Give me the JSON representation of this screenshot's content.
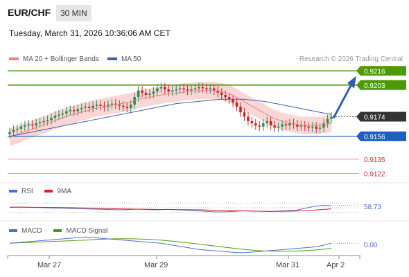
{
  "header": {
    "pair": "EUR/CHF",
    "timeframe": "30 MIN",
    "datetime": "Tuesday, March 31, 2026 10:36:06 AM CET"
  },
  "legend": {
    "ma20_label": "MA 20 + Bollinger Bands",
    "ma50_label": "MA 50",
    "credit": "Research © 2026 Trading Central"
  },
  "colors": {
    "up_candle": "#2e8b57",
    "down_candle": "#c62828",
    "ma20": "#f08080",
    "bollinger_fill": "#f9d0d0",
    "ma50": "#3c5fa8",
    "resistance": "#4e9a06",
    "support": "#1f5fbf",
    "target_line": "#e8a0a0",
    "arrow": "#2f5fad",
    "current_price_tag": "#333333",
    "rsi": "#4a6fd1",
    "rsi_ma": "#d62020",
    "macd": "#4a6fd1",
    "macd_signal": "#4e9a06"
  },
  "levels": {
    "r2": "0.9216",
    "r1": "0.9203",
    "current": "0.9174",
    "s1": "0.9156",
    "s2": "0.9135",
    "s3": "0.9122"
  },
  "rsi_panel": {
    "label": "RSI",
    "ma_label": "9MA",
    "value": "58.73",
    "upper_level": "70",
    "lower_level": "30"
  },
  "macd_panel": {
    "label": "MACD",
    "signal_label": "MACD Signal",
    "value": "0.00"
  },
  "x_axis": {
    "ticks": [
      "Mar 27",
      "Mar 29",
      "Mar 31",
      "Apr 2"
    ]
  },
  "chart_data": {
    "type": "candlestick",
    "pair": "EUR/CHF",
    "timeframe": "30 MIN",
    "ylim": [
      0.9116,
      0.922
    ],
    "series": [
      {
        "name": "Price",
        "close": [
          0.916,
          0.9162,
          0.9163,
          0.9165,
          0.9166,
          0.9167,
          0.9166,
          0.9168,
          0.9169,
          0.917,
          0.9171,
          0.9173,
          0.9175,
          0.9176,
          0.9177,
          0.9179,
          0.918,
          0.9179,
          0.9181,
          0.9182,
          0.9183,
          0.9182,
          0.9184,
          0.9185,
          0.9184,
          0.9183,
          0.9185,
          0.9186,
          0.9185,
          0.9184,
          0.9183,
          0.9182,
          0.9185,
          0.9192,
          0.9198,
          0.9196,
          0.9194,
          0.9195,
          0.9197,
          0.92,
          0.9201,
          0.9199,
          0.9197,
          0.9198,
          0.9199,
          0.92,
          0.9199,
          0.9198,
          0.9199,
          0.92,
          0.9201,
          0.92,
          0.9199,
          0.92,
          0.9198,
          0.9196,
          0.9194,
          0.9192,
          0.919,
          0.9187,
          0.9183,
          0.9178,
          0.9174,
          0.917,
          0.9168,
          0.9166,
          0.9165,
          0.9168,
          0.917,
          0.9166,
          0.9164,
          0.9165,
          0.9167,
          0.9166,
          0.9168,
          0.9167,
          0.9165,
          0.9166,
          0.9165,
          0.9164,
          0.9165,
          0.9163,
          0.9164,
          0.9168,
          0.9172,
          0.9174
        ]
      },
      {
        "name": "MA 20",
        "values": [
          0.9155,
          0.9157,
          0.9159,
          0.9161,
          0.9163,
          0.9165,
          0.9167,
          0.9169,
          0.9171,
          0.9173,
          0.9175,
          0.9176,
          0.9178,
          0.9179,
          0.9181,
          0.9182,
          0.9183,
          0.9184,
          0.9185,
          0.9186,
          0.9187,
          0.9188,
          0.919,
          0.9191,
          0.9192,
          0.9193,
          0.9194,
          0.9195,
          0.9195,
          0.9196,
          0.9197,
          0.9197,
          0.9198,
          0.9198,
          0.9198,
          0.9198,
          0.9197,
          0.9196,
          0.9194,
          0.9191,
          0.9188,
          0.9185,
          0.9182,
          0.9179,
          0.9176,
          0.9173,
          0.9171,
          0.9169,
          0.9168,
          0.9167,
          0.9166,
          0.9166,
          0.9166,
          0.9166,
          0.9167,
          0.9168
        ]
      },
      {
        "name": "MA 50",
        "values": [
          0.9156,
          0.9158,
          0.916,
          0.9162,
          0.9164,
          0.9166,
          0.9168,
          0.917,
          0.9172,
          0.9174,
          0.9176,
          0.9178,
          0.918,
          0.9182,
          0.9184,
          0.9186,
          0.9187,
          0.9188,
          0.9189,
          0.919,
          0.919,
          0.919,
          0.9189,
          0.9188,
          0.9186,
          0.9184,
          0.9182,
          0.918,
          0.9178,
          0.9176
        ]
      },
      {
        "name": "RSI",
        "values": [
          52,
          53,
          52,
          51,
          50,
          49,
          48,
          47,
          46,
          45,
          44,
          43,
          42,
          41,
          43,
          44,
          42,
          41,
          43,
          42,
          40,
          38,
          36,
          34,
          32,
          33,
          35,
          37,
          36,
          35,
          34,
          36,
          38,
          40,
          48,
          56,
          60,
          59
        ]
      },
      {
        "name": "MACD",
        "values": [
          0.0,
          0.0001,
          0.0002,
          0.0003,
          0.0004,
          0.0005,
          0.0006,
          0.0007,
          0.0008,
          0.0007,
          0.0006,
          0.0005,
          0.0004,
          0.0003,
          0.0002,
          0.0001,
          0.0,
          -0.0002,
          -0.0004,
          -0.0006,
          -0.0008,
          -0.0009,
          -0.001,
          -0.0011,
          -0.0012,
          -0.0012,
          -0.0011,
          -0.001,
          -0.0009,
          -0.0008,
          -0.0007,
          -0.0006,
          -0.0005,
          -0.0003,
          0.0
        ]
      }
    ],
    "levels": [
      0.9216,
      0.9203,
      0.9174,
      0.9156,
      0.9135,
      0.9122
    ],
    "forecast_arrow": {
      "from": 0.9174,
      "to": 0.921
    },
    "x_ticks": [
      "Mar 27",
      "Mar 29",
      "Mar 31",
      "Apr 2"
    ]
  }
}
